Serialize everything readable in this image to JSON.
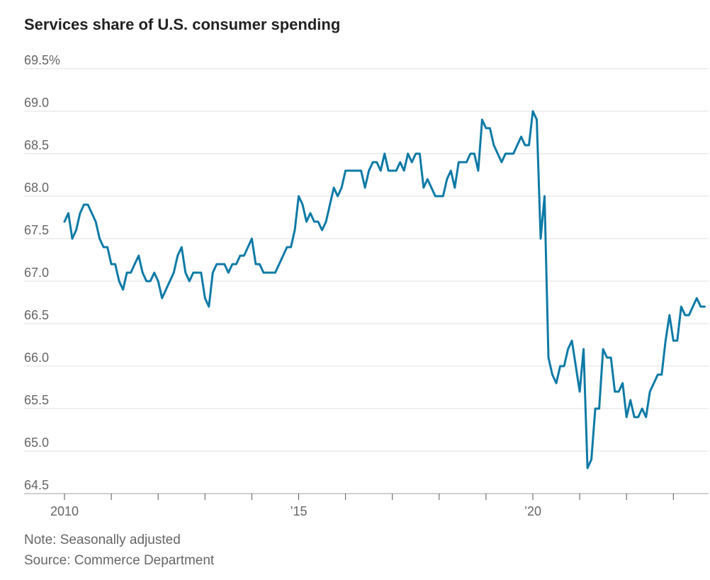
{
  "chart_data": {
    "type": "line",
    "title": "Services share of U.S. consumer spending",
    "note": "Note: Seasonally adjusted",
    "source": "Source: Commerce Department",
    "color": "#0e7aa6",
    "ylim": [
      64.5,
      69.5
    ],
    "xlim": [
      2010.0,
      2023.85
    ],
    "y_ticks": [
      {
        "value": 69.5,
        "label": "69.5%"
      },
      {
        "value": 69.0,
        "label": "69.0"
      },
      {
        "value": 68.5,
        "label": "68.5"
      },
      {
        "value": 68.0,
        "label": "68.0"
      },
      {
        "value": 67.5,
        "label": "67.5"
      },
      {
        "value": 67.0,
        "label": "67.0"
      },
      {
        "value": 66.5,
        "label": "66.5"
      },
      {
        "value": 66.0,
        "label": "66.0"
      },
      {
        "value": 65.5,
        "label": "65.5"
      },
      {
        "value": 65.0,
        "label": "65.0"
      },
      {
        "value": 64.5,
        "label": "64.5"
      }
    ],
    "x_ticks": [
      {
        "value": 2010,
        "label": "2010"
      },
      {
        "value": 2011,
        "label": ""
      },
      {
        "value": 2012,
        "label": ""
      },
      {
        "value": 2013,
        "label": ""
      },
      {
        "value": 2014,
        "label": ""
      },
      {
        "value": 2015,
        "label": "’15"
      },
      {
        "value": 2016,
        "label": ""
      },
      {
        "value": 2017,
        "label": ""
      },
      {
        "value": 2018,
        "label": ""
      },
      {
        "value": 2019,
        "label": ""
      },
      {
        "value": 2020,
        "label": "’20"
      },
      {
        "value": 2021,
        "label": ""
      },
      {
        "value": 2022,
        "label": ""
      },
      {
        "value": 2023,
        "label": ""
      }
    ],
    "start": "2010-01",
    "frequency": "monthly",
    "series": [
      {
        "values": [
          67.7,
          67.8,
          67.5,
          67.6,
          67.8,
          67.9,
          67.9,
          67.8,
          67.7,
          67.5,
          67.4,
          67.4,
          67.2,
          67.2,
          67.0,
          66.9,
          67.1,
          67.1,
          67.2,
          67.3,
          67.1,
          67.0,
          67.0,
          67.1,
          67.0,
          66.8,
          66.9,
          67.0,
          67.1,
          67.3,
          67.4,
          67.1,
          67.0,
          67.1,
          67.1,
          67.1,
          66.8,
          66.7,
          67.1,
          67.2,
          67.2,
          67.2,
          67.1,
          67.2,
          67.2,
          67.3,
          67.3,
          67.4,
          67.5,
          67.2,
          67.2,
          67.1,
          67.1,
          67.1,
          67.1,
          67.2,
          67.3,
          67.4,
          67.4,
          67.6,
          68.0,
          67.9,
          67.7,
          67.8,
          67.7,
          67.7,
          67.6,
          67.7,
          67.9,
          68.1,
          68.0,
          68.1,
          68.3,
          68.3,
          68.3,
          68.3,
          68.3,
          68.1,
          68.3,
          68.4,
          68.4,
          68.3,
          68.5,
          68.3,
          68.3,
          68.3,
          68.4,
          68.3,
          68.5,
          68.4,
          68.5,
          68.5,
          68.1,
          68.2,
          68.1,
          68.0,
          68.0,
          68.0,
          68.2,
          68.3,
          68.1,
          68.4,
          68.4,
          68.4,
          68.5,
          68.5,
          68.3,
          68.9,
          68.8,
          68.8,
          68.6,
          68.5,
          68.4,
          68.5,
          68.5,
          68.5,
          68.6,
          68.7,
          68.6,
          68.6,
          69.0,
          68.9,
          67.5,
          68.0,
          66.1,
          65.9,
          65.8,
          66.0,
          66.0,
          66.2,
          66.3,
          66.0,
          65.7,
          66.2,
          64.8,
          64.9,
          65.5,
          65.5,
          66.2,
          66.1,
          66.1,
          65.7,
          65.7,
          65.8,
          65.4,
          65.6,
          65.4,
          65.4,
          65.5,
          65.4,
          65.7,
          65.8,
          65.9,
          65.9,
          66.3,
          66.6,
          66.3,
          66.3,
          66.7,
          66.6,
          66.6,
          66.7,
          66.8,
          66.7,
          66.7
        ]
      }
    ]
  }
}
